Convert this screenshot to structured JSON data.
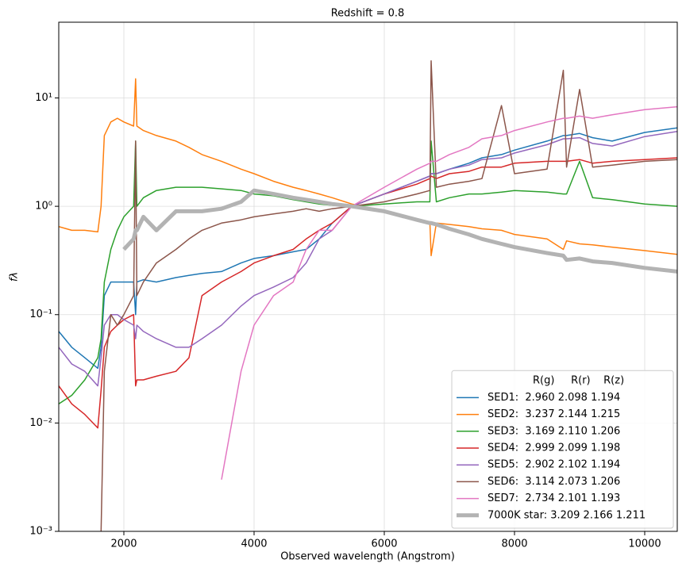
{
  "chart_data": {
    "type": "line",
    "title": "Redshift = 0.8",
    "x_label": "Observed wavelength (Angstrom)",
    "y_label": "fλ",
    "y_scale": "log",
    "grid": true,
    "legend_loc": "lower right",
    "legend_title": "R(g)     R(r)    R(z)",
    "xlim": [
      1000,
      10500
    ],
    "xticks": [
      2000,
      4000,
      6000,
      8000,
      10000
    ],
    "ylim": [
      0.001,
      50
    ],
    "yticks": [
      {
        "value": 0.001,
        "label": "10⁻³"
      },
      {
        "value": 0.01,
        "label": "10⁻²"
      },
      {
        "value": 0.1,
        "label": "10⁻¹"
      },
      {
        "value": 1,
        "label": "10⁰"
      },
      {
        "value": 10,
        "label": "10¹"
      }
    ],
    "x": [
      1000,
      1200,
      1400,
      1600,
      1650,
      1700,
      1800,
      1900,
      2000,
      2150,
      2180,
      2200,
      2300,
      2500,
      2800,
      3000,
      3200,
      3500,
      3800,
      4000,
      4300,
      4600,
      4800,
      5000,
      5200,
      5500,
      6000,
      6500,
      6700,
      6720,
      6800,
      7000,
      7300,
      7500,
      7800,
      8000,
      8500,
      8750,
      8800,
      9000,
      9200,
      9500,
      10000,
      10500
    ],
    "series": [
      {
        "name": "SED1:  2.960 2.098 1.194",
        "color": "#1f77b4",
        "linewidth": 1.5,
        "values": [
          0.07,
          0.05,
          0.04,
          0.032,
          0.05,
          0.15,
          0.2,
          0.2,
          0.2,
          0.2,
          0.1,
          0.2,
          0.21,
          0.2,
          0.22,
          0.23,
          0.24,
          0.25,
          0.3,
          0.33,
          0.35,
          0.38,
          0.4,
          0.5,
          0.7,
          1.0,
          1.3,
          1.7,
          1.9,
          2.0,
          2.0,
          2.2,
          2.5,
          2.8,
          3.0,
          3.3,
          4.0,
          4.5,
          4.5,
          4.7,
          4.3,
          4.0,
          4.8,
          5.3
        ]
      },
      {
        "name": "SED2:  3.237 2.144 1.215",
        "color": "#ff7f0e",
        "linewidth": 1.5,
        "values": [
          0.65,
          0.6,
          0.6,
          0.58,
          1.0,
          4.5,
          6.0,
          6.5,
          6.0,
          5.5,
          15,
          5.5,
          5.0,
          4.5,
          4.0,
          3.5,
          3.0,
          2.6,
          2.2,
          2.0,
          1.7,
          1.5,
          1.4,
          1.3,
          1.2,
          1.05,
          0.9,
          0.75,
          0.72,
          0.35,
          0.7,
          0.68,
          0.65,
          0.62,
          0.6,
          0.55,
          0.5,
          0.4,
          0.48,
          0.45,
          0.44,
          0.42,
          0.39,
          0.36
        ]
      },
      {
        "name": "SED3:  3.169 2.110 1.206",
        "color": "#2ca02c",
        "linewidth": 1.5,
        "values": [
          0.015,
          0.018,
          0.025,
          0.04,
          0.06,
          0.2,
          0.4,
          0.6,
          0.8,
          1.0,
          4.0,
          1.0,
          1.2,
          1.4,
          1.5,
          1.5,
          1.5,
          1.45,
          1.4,
          1.3,
          1.25,
          1.15,
          1.1,
          1.05,
          1.02,
          1.0,
          1.05,
          1.1,
          1.1,
          4.0,
          1.1,
          1.2,
          1.3,
          1.3,
          1.35,
          1.4,
          1.35,
          1.3,
          1.3,
          2.6,
          1.2,
          1.15,
          1.05,
          1.0
        ]
      },
      {
        "name": "SED4:  2.999 2.099 1.198",
        "color": "#d62728",
        "linewidth": 1.5,
        "values": [
          0.022,
          0.015,
          0.012,
          0.009,
          0.02,
          0.05,
          0.07,
          0.08,
          0.09,
          0.1,
          0.022,
          0.025,
          0.025,
          0.027,
          0.03,
          0.04,
          0.15,
          0.2,
          0.25,
          0.3,
          0.35,
          0.4,
          0.5,
          0.6,
          0.7,
          1.0,
          1.3,
          1.6,
          1.8,
          1.9,
          1.8,
          2.0,
          2.1,
          2.3,
          2.3,
          2.5,
          2.6,
          2.6,
          2.6,
          2.7,
          2.5,
          2.6,
          2.7,
          2.8
        ]
      },
      {
        "name": "SED5:  2.902 2.102 1.194",
        "color": "#9467bd",
        "linewidth": 1.5,
        "values": [
          0.05,
          0.035,
          0.03,
          0.022,
          0.04,
          0.08,
          0.1,
          0.1,
          0.09,
          0.08,
          0.06,
          0.08,
          0.07,
          0.06,
          0.05,
          0.05,
          0.06,
          0.08,
          0.12,
          0.15,
          0.18,
          0.22,
          0.3,
          0.5,
          0.6,
          1.0,
          1.3,
          1.7,
          1.9,
          2.0,
          2.0,
          2.2,
          2.4,
          2.7,
          2.8,
          3.1,
          3.7,
          4.2,
          4.2,
          4.3,
          3.8,
          3.6,
          4.4,
          4.9
        ]
      },
      {
        "name": "SED6:  3.114 2.073 1.206",
        "color": "#8c564b",
        "linewidth": 1.5,
        "values": [
          null,
          null,
          null,
          null,
          0.001,
          0.03,
          0.1,
          0.08,
          0.1,
          0.15,
          4.0,
          0.15,
          0.2,
          0.3,
          0.4,
          0.5,
          0.6,
          0.7,
          0.75,
          0.8,
          0.85,
          0.9,
          0.95,
          0.9,
          0.95,
          1.0,
          1.1,
          1.3,
          1.4,
          22,
          1.5,
          1.6,
          1.7,
          1.8,
          8.5,
          2.0,
          2.2,
          18,
          2.3,
          12,
          2.3,
          2.4,
          2.6,
          2.7
        ]
      },
      {
        "name": "SED7:  2.734 2.101 1.193",
        "color": "#e377c2",
        "linewidth": 1.5,
        "values": [
          null,
          null,
          null,
          null,
          null,
          null,
          null,
          null,
          null,
          null,
          null,
          null,
          null,
          null,
          null,
          null,
          null,
          0.003,
          0.03,
          0.08,
          0.15,
          0.2,
          0.4,
          0.6,
          0.6,
          1.0,
          1.5,
          2.2,
          2.5,
          2.6,
          2.6,
          3.0,
          3.5,
          4.2,
          4.5,
          5.0,
          6.0,
          6.5,
          6.5,
          6.8,
          6.5,
          7.0,
          7.8,
          8.3
        ]
      },
      {
        "name": "7000K star: 3.209 2.166 1.211",
        "color": "#b3b3b3",
        "linewidth": 5,
        "values": [
          null,
          null,
          null,
          null,
          null,
          null,
          null,
          null,
          0.4,
          0.5,
          0.6,
          0.6,
          0.8,
          0.6,
          0.9,
          0.9,
          0.9,
          0.95,
          1.1,
          1.4,
          1.3,
          1.2,
          1.15,
          1.1,
          1.05,
          1.0,
          0.9,
          0.75,
          0.7,
          0.7,
          0.68,
          0.62,
          0.55,
          0.5,
          0.45,
          0.42,
          0.37,
          0.35,
          0.32,
          0.33,
          0.31,
          0.3,
          0.27,
          0.25
        ]
      }
    ]
  }
}
